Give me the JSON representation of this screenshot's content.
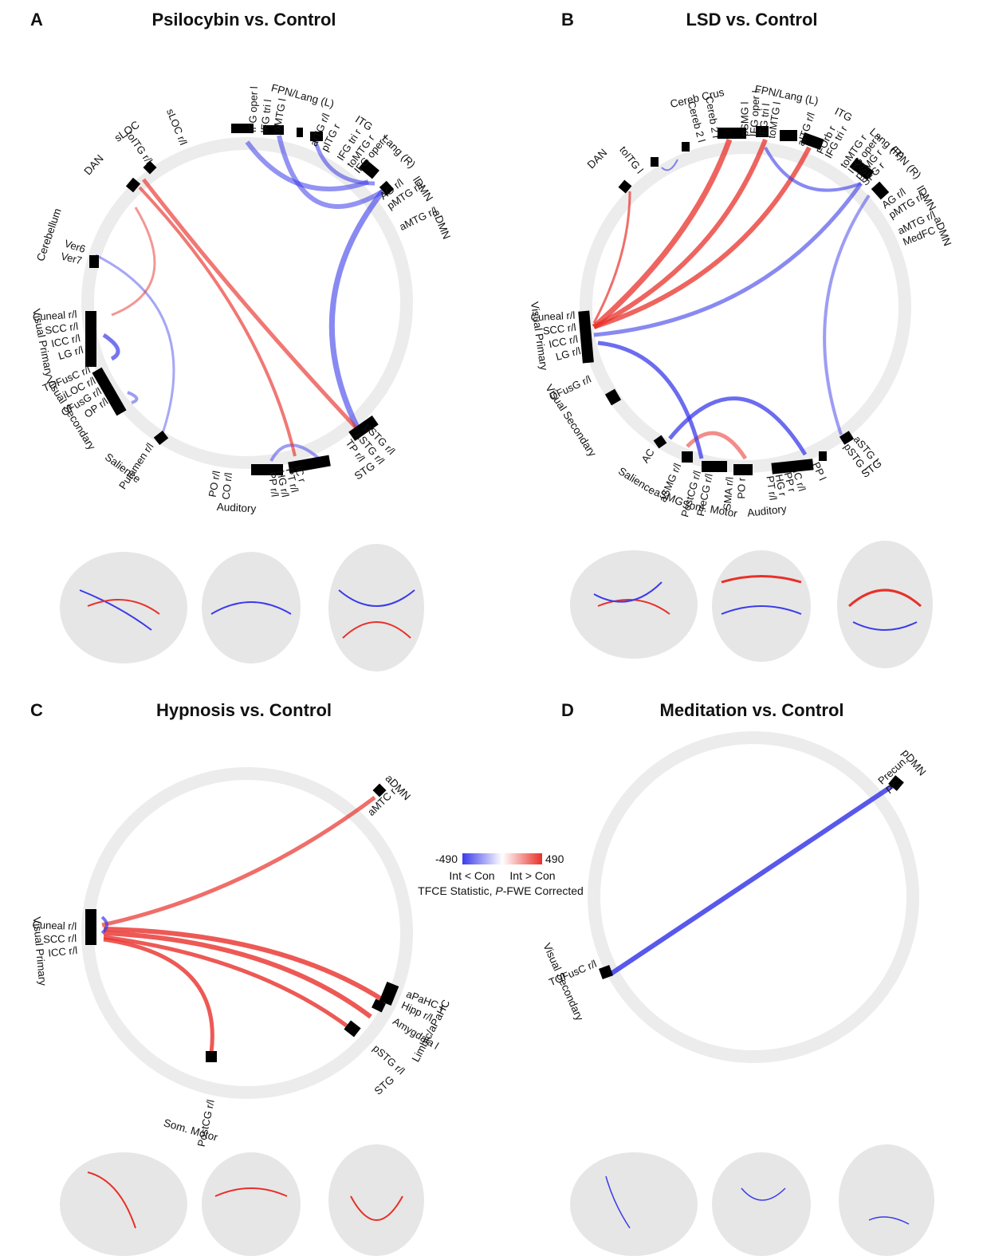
{
  "colors": {
    "positive": "#e8302a",
    "negative": "#3b3bea",
    "ring": "#ececec",
    "node": "#000000",
    "bracket": "#555555"
  },
  "colorbar": {
    "min": "-490",
    "max": "490",
    "left_label": "Int < Con",
    "right_label": "Int > Con",
    "stat_prefix": "TFCE Statistic, ",
    "stat_p": "P",
    "stat_suffix": "-FWE Corrected"
  },
  "panels": [
    {
      "letter": "A",
      "title": "Psilocybin vs. Control",
      "networks": [
        {
          "text": "FPN/Lang (L)",
          "angle": -75,
          "r": 268
        },
        {
          "text": "ITG",
          "angle": -57,
          "r": 268
        },
        {
          "text": "Lang (R)",
          "angle": -45,
          "r": 268
        },
        {
          "text": "lDMN",
          "angle": -33,
          "r": 262
        },
        {
          "text": "aDMN",
          "angle": -22,
          "r": 262
        },
        {
          "text": "sLOC",
          "angle": -125,
          "r": 262
        },
        {
          "text": "DAN",
          "angle": -138,
          "r": 258
        },
        {
          "text": "Cerebellum",
          "angle": -161,
          "r": 262
        },
        {
          "text": "Visual Primary",
          "angle": 169,
          "r": 262
        },
        {
          "text": "Visual Secondary",
          "angle": 148,
          "r": 262
        },
        {
          "text": "Salience",
          "angle": 127,
          "r": 260
        },
        {
          "text": "Auditory",
          "angle": 93,
          "r": 258
        },
        {
          "text": "STG",
          "angle": 55,
          "r": 258
        }
      ],
      "labels": [
        {
          "text": "toMTG l",
          "angle": -80
        },
        {
          "text": "IFG tri l",
          "angle": -84
        },
        {
          "text": "IFG oper l",
          "angle": -88
        },
        {
          "text": "aITG r/l",
          "angle": -67
        },
        {
          "text": "pITG r",
          "angle": -63
        },
        {
          "text": "IFG tri r",
          "angle": -57
        },
        {
          "text": "toMTG r",
          "angle": -53
        },
        {
          "text": "IFG oper r",
          "angle": -50
        },
        {
          "text": "AG r/l",
          "angle": -38
        },
        {
          "text": "pMTG r/l",
          "angle": -34
        },
        {
          "text": "aMTG r/l",
          "angle": -26
        },
        {
          "text": "sLOC r/l",
          "angle": -112
        },
        {
          "text": "toITG r/l",
          "angle": -125
        },
        {
          "text": "Ver7",
          "angle": -166
        },
        {
          "text": "Ver6",
          "angle": -162
        },
        {
          "text": "Cuneal r/l",
          "angle": 176
        },
        {
          "text": "SCC r/l",
          "angle": 172
        },
        {
          "text": "ICC r/l",
          "angle": 168
        },
        {
          "text": "LG r/l",
          "angle": 164
        },
        {
          "text": "TOFusC r/l",
          "angle": 157
        },
        {
          "text": "iLOC r/l",
          "angle": 153
        },
        {
          "text": "OFusG r/l",
          "angle": 149
        },
        {
          "text": "OP r/l",
          "angle": 145
        },
        {
          "text": "Putamen r/l",
          "angle": 124
        },
        {
          "text": "PO r/l",
          "angle": 100
        },
        {
          "text": "CO r/l",
          "angle": 96
        },
        {
          "text": "PP r/l",
          "angle": 82
        },
        {
          "text": "HG r/l",
          "angle": 79
        },
        {
          "text": "PT r/l",
          "angle": 76
        },
        {
          "text": "IC r",
          "angle": 73
        },
        {
          "text": "TP r/l",
          "angle": 54
        },
        {
          "text": "aSTG r/l",
          "angle": 50
        },
        {
          "text": "pSTG r/l",
          "angle": 46
        }
      ]
    },
    {
      "letter": "B",
      "title": "LSD vs. Control",
      "networks": [
        {
          "text": "Cereb Crus",
          "angle": -103,
          "r": 268
        },
        {
          "text": "FPN/Lang (L)",
          "angle": -79,
          "r": 270
        },
        {
          "text": "ITG",
          "angle": -63,
          "r": 270
        },
        {
          "text": "Lang (R)",
          "angle": -49,
          "r": 270
        },
        {
          "text": "FPN (R)",
          "angle": -42,
          "r": 270
        },
        {
          "text": "lDMN",
          "angle": -31,
          "r": 264
        },
        {
          "text": "aDMN",
          "angle": -21,
          "r": 264
        },
        {
          "text": "DAN",
          "angle": -135,
          "r": 262
        },
        {
          "text": "Visual Primary",
          "angle": 172,
          "r": 262
        },
        {
          "text": "Visual Secondary",
          "angle": 147,
          "r": 262
        },
        {
          "text": "Salience",
          "angle": 122,
          "r": 258
        },
        {
          "text": "aSMG",
          "angle": 112,
          "r": 258
        },
        {
          "text": "Som. Motor",
          "angle": 100,
          "r": 258
        },
        {
          "text": "Auditory",
          "angle": 84,
          "r": 258
        },
        {
          "text": "STG",
          "angle": 52,
          "r": 258
        }
      ],
      "labels": [
        {
          "text": "Cereb 2 r",
          "angle": -100
        },
        {
          "text": "Cereb 2 l",
          "angle": -105
        },
        {
          "text": "toMTG l",
          "angle": -81
        },
        {
          "text": "IFG tri l",
          "angle": -84
        },
        {
          "text": "IFG oper l",
          "angle": -87
        },
        {
          "text": "pSMG l",
          "angle": -90
        },
        {
          "text": "aITG r/l",
          "angle": -71
        },
        {
          "text": "FOrb r",
          "angle": -64
        },
        {
          "text": "IFG tri r",
          "angle": -61
        },
        {
          "text": "toMTG r",
          "angle": -55
        },
        {
          "text": "IFG oper r",
          "angle": -52
        },
        {
          "text": "pSMG r",
          "angle": -49
        },
        {
          "text": "SFG r",
          "angle": -46
        },
        {
          "text": "AG r/l",
          "angle": -36
        },
        {
          "text": "pMTG r/l",
          "angle": -32
        },
        {
          "text": "aMTG r/l",
          "angle": -26
        },
        {
          "text": "MedFC",
          "angle": -22
        },
        {
          "text": "toITG l",
          "angle": -128
        },
        {
          "text": "Cuneal r/l",
          "angle": 177
        },
        {
          "text": "SCC r/l",
          "angle": 173
        },
        {
          "text": "ICC r/l",
          "angle": 169
        },
        {
          "text": "LG r/l",
          "angle": 165
        },
        {
          "text": "OFusG r/l",
          "angle": 155
        },
        {
          "text": "AC",
          "angle": 123
        },
        {
          "text": "aSMG r/l",
          "angle": 113
        },
        {
          "text": "PostCG r/l",
          "angle": 106
        },
        {
          "text": "PreCG r/l",
          "angle": 102
        },
        {
          "text": "SMA r/l",
          "angle": 95
        },
        {
          "text": "PO r",
          "angle": 91
        },
        {
          "text": "PT r/l",
          "angle": 82
        },
        {
          "text": "HG r",
          "angle": 79
        },
        {
          "text": "PP r",
          "angle": 76
        },
        {
          "text": "IC r/l",
          "angle": 73
        },
        {
          "text": "PP l",
          "angle": 66
        },
        {
          "text": "pSTG l",
          "angle": 54
        },
        {
          "text": "aSTG l",
          "angle": 50
        }
      ]
    },
    {
      "letter": "C",
      "title": "Hypnosis vs. Control",
      "networks": [
        {
          "text": "aDMN",
          "angle": -44,
          "r": 262
        },
        {
          "text": "Visual Primary",
          "angle": 175,
          "r": 262
        },
        {
          "text": "Limbic/aPaHC",
          "angle": 28,
          "r": 262
        },
        {
          "text": "STG",
          "angle": 48,
          "r": 258
        },
        {
          "text": "Som. Motor",
          "angle": 106,
          "r": 258
        }
      ],
      "labels": [
        {
          "text": "aMTC r",
          "angle": -44
        },
        {
          "text": "Cuneal r/l",
          "angle": -178
        },
        {
          "text": "SCC r/l",
          "angle": 178
        },
        {
          "text": "ICC r/l",
          "angle": 174
        },
        {
          "text": "aPaHC r",
          "angle": 21
        },
        {
          "text": "Hipp r/l",
          "angle": 25
        },
        {
          "text": "Amygdala l",
          "angle": 31
        },
        {
          "text": "pSTG r/l",
          "angle": 42
        },
        {
          "text": "PostCG r/l",
          "angle": 102
        }
      ]
    },
    {
      "letter": "D",
      "title": "Meditation vs. Control",
      "networks": [
        {
          "text": "pDMN",
          "angle": -40,
          "r": 262
        },
        {
          "text": "Visual Secondary",
          "angle": 156,
          "r": 262
        }
      ],
      "labels": [
        {
          "text": "Precun.",
          "angle": -42
        },
        {
          "text": "PC",
          "angle": -38
        },
        {
          "text": "TOFusC r/l",
          "angle": 157
        }
      ]
    }
  ]
}
